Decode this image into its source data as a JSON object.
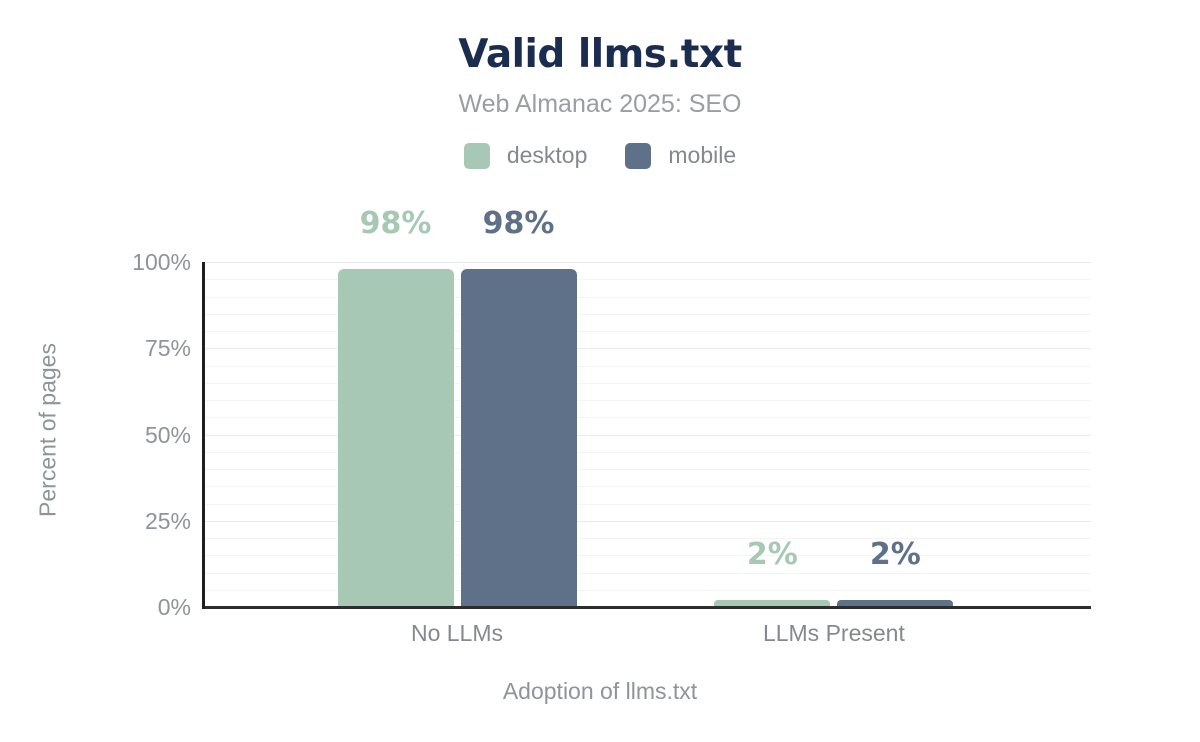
{
  "header": {
    "title": "Valid llms.txt",
    "subtitle": "Web Almanac 2025: SEO"
  },
  "colors": {
    "title_text": "#1b2d4f",
    "muted_text": "#8f9499",
    "desktop": "#a6c8b5",
    "mobile": "#5e7189",
    "axis_line": "#2d2d2d",
    "gridline_minor": "#f4f4f4",
    "gridline_major": "#eaeaea"
  },
  "chart_data": {
    "type": "bar",
    "title": "Valid llms.txt",
    "subtitle": "Web Almanac 2025: SEO",
    "categories": [
      "No LLMs",
      "LLMs Present"
    ],
    "series": [
      {
        "name": "desktop",
        "color": "#a6c8b5",
        "values": [
          98,
          2
        ],
        "value_labels": [
          "98%",
          "2%"
        ]
      },
      {
        "name": "mobile",
        "color": "#5e7189",
        "values": [
          98,
          2
        ],
        "value_labels": [
          "98%",
          "2%"
        ]
      }
    ],
    "xlabel": "Adoption of llms.txt",
    "ylabel": "Percent of pages",
    "ylim": [
      0,
      100
    ],
    "yticks": [
      0,
      25,
      50,
      75,
      100
    ],
    "ytick_labels": [
      "0%",
      "25%",
      "50%",
      "75%",
      "100%"
    ],
    "grid_step": 5,
    "grid": "horizontal",
    "legend_position": "top"
  }
}
